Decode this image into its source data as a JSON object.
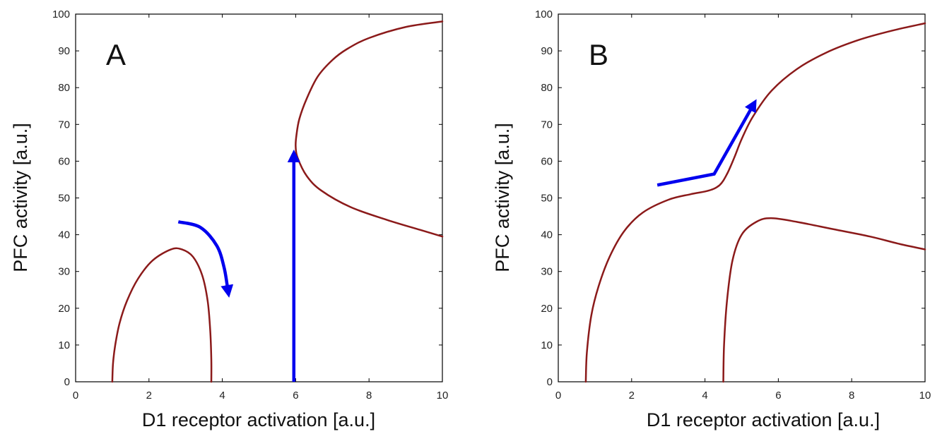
{
  "chart_data": [
    {
      "type": "line",
      "panel_label": "A",
      "xlabel": "D1 receptor activation [a.u.]",
      "ylabel": "PFC activity [a.u.]",
      "xlim": [
        0,
        10
      ],
      "ylim": [
        0,
        100
      ],
      "xticks": [
        0,
        2,
        4,
        6,
        8,
        10
      ],
      "yticks": [
        0,
        10,
        20,
        30,
        40,
        50,
        60,
        70,
        80,
        90,
        100
      ],
      "grid": false,
      "curve_color": "#8b1a1a",
      "arrow_color": "#0000ee",
      "series": [
        {
          "points": [
            [
              1.0,
              0
            ],
            [
              1.02,
              5
            ],
            [
              1.08,
              10
            ],
            [
              1.2,
              16
            ],
            [
              1.4,
              22
            ],
            [
              1.7,
              28
            ],
            [
              2.1,
              33
            ],
            [
              2.6,
              36
            ],
            [
              2.9,
              36
            ],
            [
              3.2,
              34
            ],
            [
              3.45,
              29
            ],
            [
              3.6,
              22
            ],
            [
              3.67,
              14
            ],
            [
              3.7,
              6
            ],
            [
              3.7,
              0
            ]
          ]
        },
        {
          "points": [
            [
              10.0,
              98
            ],
            [
              9.0,
              96.5
            ],
            [
              8.0,
              93.5
            ],
            [
              7.4,
              90.5
            ],
            [
              7.0,
              87.5
            ],
            [
              6.6,
              83
            ],
            [
              6.3,
              77
            ],
            [
              6.1,
              71.5
            ],
            [
              6.02,
              67
            ],
            [
              6.0,
              64
            ],
            [
              6.05,
              61
            ],
            [
              6.3,
              56
            ],
            [
              6.7,
              52
            ],
            [
              7.5,
              47.5
            ],
            [
              8.5,
              44
            ],
            [
              9.4,
              41.3
            ],
            [
              10.0,
              39.5
            ]
          ]
        }
      ],
      "arrows": [
        {
          "points": [
            [
              5.95,
              0
            ],
            [
              5.95,
              61
            ]
          ]
        },
        {
          "points": [
            [
              2.8,
              43.5
            ],
            [
              3.4,
              42
            ],
            [
              3.85,
              37
            ],
            [
              4.05,
              31
            ],
            [
              4.15,
              25
            ]
          ],
          "curved": true
        }
      ]
    },
    {
      "type": "line",
      "panel_label": "B",
      "xlabel": "D1 receptor activation [a.u.]",
      "ylabel": "PFC activity [a.u.]",
      "xlim": [
        0,
        10
      ],
      "ylim": [
        0,
        100
      ],
      "xticks": [
        0,
        2,
        4,
        6,
        8,
        10
      ],
      "yticks": [
        0,
        10,
        20,
        30,
        40,
        50,
        60,
        70,
        80,
        90,
        100
      ],
      "grid": false,
      "curve_color": "#8b1a1a",
      "arrow_color": "#0000ee",
      "series": [
        {
          "points": [
            [
              0.75,
              0
            ],
            [
              0.78,
              8
            ],
            [
              0.9,
              18
            ],
            [
              1.1,
              26
            ],
            [
              1.4,
              34
            ],
            [
              1.8,
              41
            ],
            [
              2.3,
              46
            ],
            [
              3.0,
              49.5
            ],
            [
              3.6,
              51
            ],
            [
              4.1,
              52
            ],
            [
              4.4,
              53.5
            ],
            [
              4.6,
              56.5
            ],
            [
              4.8,
              61
            ],
            [
              5.0,
              66
            ],
            [
              5.3,
              72
            ],
            [
              5.8,
              79
            ],
            [
              6.5,
              85
            ],
            [
              7.3,
              89.5
            ],
            [
              8.2,
              93
            ],
            [
              9.1,
              95.5
            ],
            [
              10.0,
              97.5
            ]
          ]
        },
        {
          "points": [
            [
              4.5,
              0
            ],
            [
              4.52,
              10
            ],
            [
              4.6,
              22
            ],
            [
              4.75,
              33
            ],
            [
              5.0,
              40
            ],
            [
              5.4,
              43.5
            ],
            [
              5.8,
              44.5
            ],
            [
              6.5,
              43.5
            ],
            [
              7.5,
              41.5
            ],
            [
              8.5,
              39.5
            ],
            [
              9.3,
              37.5
            ],
            [
              10.0,
              36
            ]
          ]
        }
      ],
      "arrows": [
        {
          "points": [
            [
              2.7,
              53.5
            ],
            [
              4.25,
              56.5
            ],
            [
              5.3,
              75
            ]
          ]
        }
      ]
    }
  ]
}
